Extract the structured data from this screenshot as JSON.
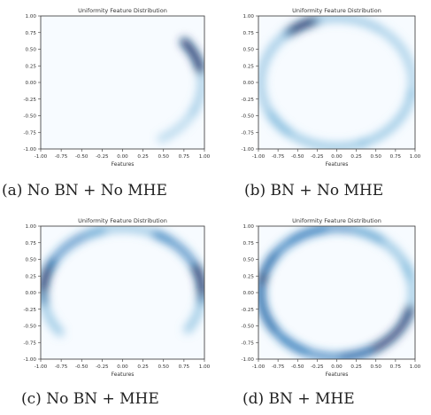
{
  "figure": {
    "panels": [
      {
        "title": "Uniformity Feature Distribution",
        "xlabel": "Features",
        "caption": "(a) No BN + No MHE"
      },
      {
        "title": "Uniformity Feature Distribution",
        "xlabel": "Features",
        "caption": "(b) BN + No MHE"
      },
      {
        "title": "Uniformity Feature Distribution",
        "xlabel": "Features",
        "caption": "(c) No BN + MHE"
      },
      {
        "title": "Uniformity Feature Distribution",
        "xlabel": "Features",
        "caption": "(d) BN + MHE"
      }
    ]
  },
  "chart_data": [
    {
      "type": "heatmap",
      "title": "Uniformity Feature Distribution",
      "xlabel": "Features",
      "ylabel": "",
      "xlim": [
        -1.0,
        1.0
      ],
      "ylim": [
        -1.0,
        1.0
      ],
      "xticks": [
        "-1.00",
        "-0.75",
        "-0.50",
        "-0.25",
        "0.00",
        "0.25",
        "0.50",
        "0.75",
        "1.00"
      ],
      "yticks": [
        "1.00",
        "0.75",
        "0.50",
        "0.25",
        "0.00",
        "-0.25",
        "-0.50",
        "-0.75",
        "-1.00"
      ],
      "colormap": "Blues",
      "density_arcs_on_unit_circle": [
        {
          "center_deg": 25,
          "width_deg": 14,
          "intensity": 1.0
        },
        {
          "center_deg": -10,
          "width_deg": 16,
          "intensity": 0.35
        },
        {
          "center_deg": -45,
          "width_deg": 16,
          "intensity": 0.15
        }
      ]
    },
    {
      "type": "heatmap",
      "title": "Uniformity Feature Distribution",
      "xlabel": "Features",
      "ylabel": "",
      "xlim": [
        -1.0,
        1.0
      ],
      "ylim": [
        -1.0,
        1.0
      ],
      "xticks": [
        "-1.00",
        "-0.75",
        "-0.50",
        "-0.25",
        "0.00",
        "0.25",
        "0.50",
        "0.75",
        "1.00"
      ],
      "yticks": [
        "1.00",
        "0.75",
        "0.50",
        "0.25",
        "0.00",
        "-0.25",
        "-0.50",
        "-0.75",
        "-1.00"
      ],
      "colormap": "Blues",
      "density_arcs_on_unit_circle": [
        {
          "center_deg": 118,
          "width_deg": 12,
          "intensity": 1.0
        },
        {
          "center_deg": 80,
          "width_deg": 25,
          "intensity": 0.4
        },
        {
          "center_deg": 180,
          "width_deg": 50,
          "intensity": 0.4
        },
        {
          "center_deg": 250,
          "width_deg": 40,
          "intensity": 0.45
        },
        {
          "center_deg": 320,
          "width_deg": 30,
          "intensity": 0.45
        },
        {
          "center_deg": 20,
          "width_deg": 30,
          "intensity": 0.3
        }
      ]
    },
    {
      "type": "heatmap",
      "title": "Uniformity Feature Distribution",
      "xlabel": "Features",
      "ylabel": "",
      "xlim": [
        -1.0,
        1.0
      ],
      "ylim": [
        -1.0,
        1.0
      ],
      "xticks": [
        "-1.00",
        "-0.75",
        "-0.50",
        "-0.25",
        "0.00",
        "0.25",
        "0.50",
        "0.75",
        "1.00"
      ],
      "yticks": [
        "1.00",
        "0.75",
        "0.50",
        "0.25",
        "0.00",
        "-0.25",
        "-0.50",
        "-0.75",
        "-1.00"
      ],
      "colormap": "Blues",
      "density_arcs_on_unit_circle": [
        {
          "center_deg": 170,
          "width_deg": 18,
          "intensity": 1.0
        },
        {
          "center_deg": 200,
          "width_deg": 18,
          "intensity": 0.45
        },
        {
          "center_deg": 130,
          "width_deg": 25,
          "intensity": 0.55
        },
        {
          "center_deg": 85,
          "width_deg": 30,
          "intensity": 0.4
        },
        {
          "center_deg": 40,
          "width_deg": 25,
          "intensity": 0.6
        },
        {
          "center_deg": 8,
          "width_deg": 15,
          "intensity": 1.0
        },
        {
          "center_deg": -20,
          "width_deg": 15,
          "intensity": 0.45
        }
      ]
    },
    {
      "type": "heatmap",
      "title": "Uniformity Feature Distribution",
      "xlabel": "Features",
      "ylabel": "",
      "xlim": [
        -1.0,
        1.0
      ],
      "ylim": [
        -1.0,
        1.0
      ],
      "xticks": [
        "-1.00",
        "-0.75",
        "-0.50",
        "-0.25",
        "0.00",
        "0.25",
        "0.50",
        "0.75",
        "1.00"
      ],
      "yticks": [
        "1.00",
        "0.75",
        "0.50",
        "0.25",
        "0.00",
        "-0.25",
        "-0.50",
        "-0.75",
        "-1.00"
      ],
      "colormap": "Blues",
      "density_arcs_on_unit_circle": [
        {
          "center_deg": 180,
          "width_deg": 35,
          "intensity": 1.0
        },
        {
          "center_deg": 130,
          "width_deg": 30,
          "intensity": 0.75
        },
        {
          "center_deg": 90,
          "width_deg": 35,
          "intensity": 0.55
        },
        {
          "center_deg": 45,
          "width_deg": 30,
          "intensity": 0.5
        },
        {
          "center_deg": 0,
          "width_deg": 25,
          "intensity": 0.45
        },
        {
          "center_deg": -50,
          "width_deg": 35,
          "intensity": 0.85
        },
        {
          "center_deg": -100,
          "width_deg": 35,
          "intensity": 0.65
        },
        {
          "center_deg": -150,
          "width_deg": 35,
          "intensity": 0.75
        }
      ]
    }
  ]
}
